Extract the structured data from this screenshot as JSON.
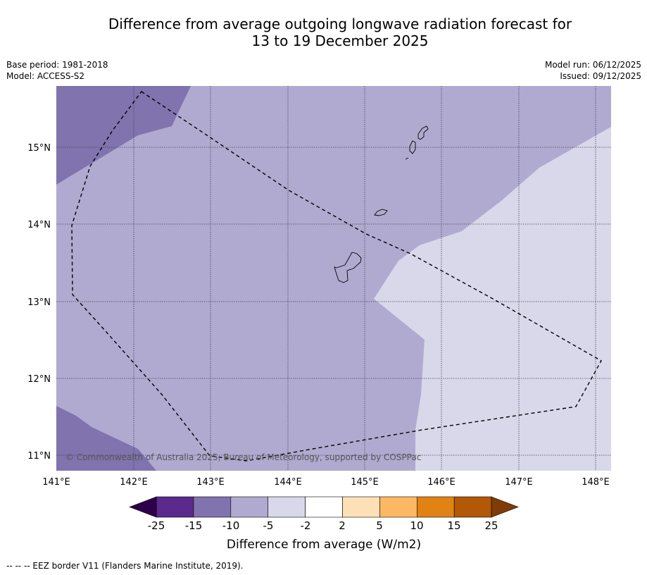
{
  "title": {
    "line1": "Difference from average outgoing longwave radiation forecast for",
    "line2": "13 to 19 December 2025"
  },
  "meta": {
    "base_period": "Base period: 1981-2018",
    "model": "Model: ACCESS-S2",
    "model_run": "Model run: 06/12/2025",
    "issued": "Issued: 09/12/2025"
  },
  "map": {
    "lon_labels": [
      "141°E",
      "142°E",
      "143°E",
      "144°E",
      "145°E",
      "146°E",
      "147°E",
      "148°E"
    ],
    "lat_labels": [
      "15°N",
      "14°N",
      "13°N",
      "12°N",
      "11°N"
    ],
    "copyright": "© Commonwealth of Australia 2025, Bureau of Meteorology, supported by COSPPac"
  },
  "colorbar": {
    "ticks": [
      "-25",
      "-15",
      "-10",
      "-5",
      "-2",
      "2",
      "5",
      "10",
      "15",
      "25"
    ],
    "label": "Difference from average (W/m2)",
    "colors": [
      "#5b2a8c",
      "#8073ae",
      "#b0aad1",
      "#d8d8ea",
      "#ffffff",
      "#fee0b6",
      "#fdb863",
      "#e08214",
      "#b35806"
    ],
    "under_color": "#2d004b",
    "over_color": "#7f3b08"
  },
  "footnote": "--  --  -- EEZ border V11 (Flanders Marine Institute, 2019)."
}
